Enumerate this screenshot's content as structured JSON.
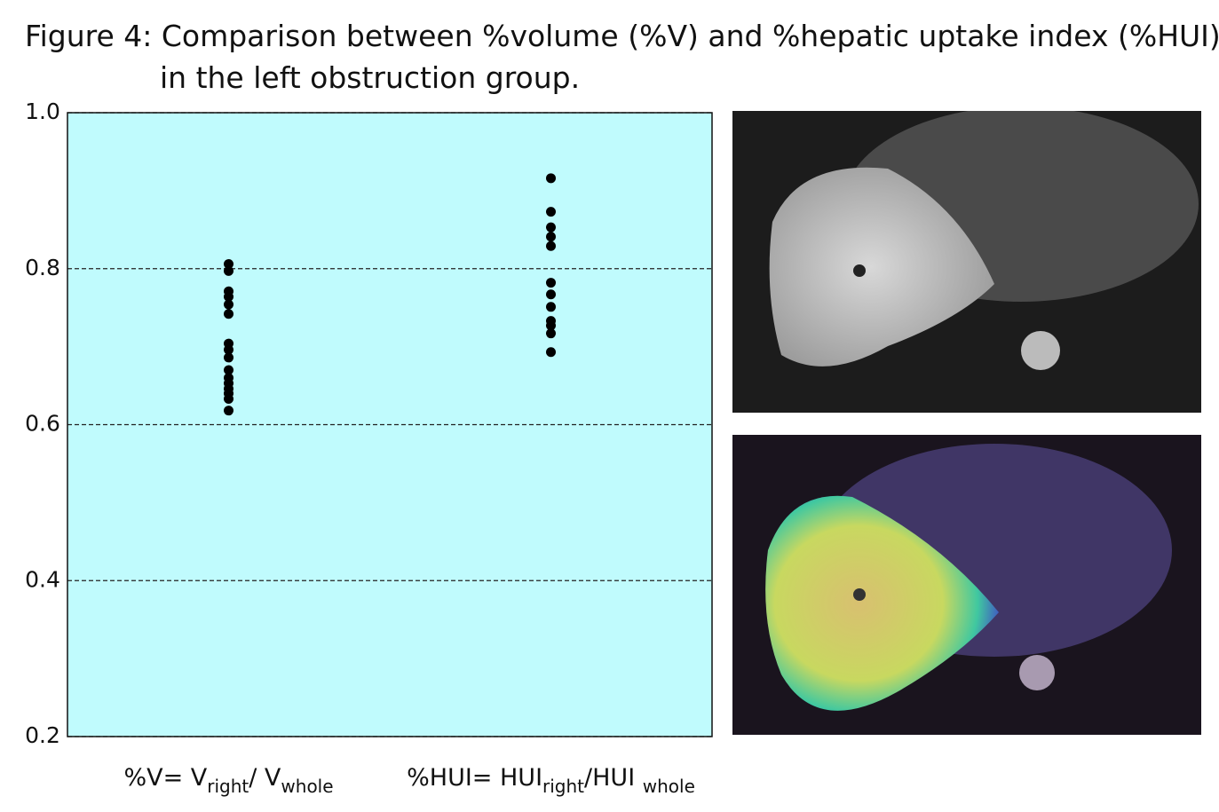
{
  "chart_data": {
    "type": "strip",
    "title": [
      "Figure 4: Comparison between %volume (%V) and %hepatic uptake index (%HUI)",
      "in the left obstruction group."
    ],
    "categories": [
      [
        "%V= V",
        "right",
        "/ V",
        "whole"
      ],
      [
        "%HUI= HUI",
        "right",
        "/HUI ",
        "whole"
      ]
    ],
    "series": [
      {
        "color": "#000000",
        "values": [
          0.806,
          0.797,
          0.771,
          0.764,
          0.754,
          0.742,
          0.704,
          0.696,
          0.686,
          0.67,
          0.66,
          0.653,
          0.646,
          0.64,
          0.633,
          0.618
        ]
      },
      {
        "color": "#000000",
        "values": [
          0.916,
          0.873,
          0.853,
          0.841,
          0.829,
          0.782,
          0.767,
          0.751,
          0.733,
          0.727,
          0.717,
          0.693
        ]
      }
    ],
    "ylim": [
      0.2,
      1.0
    ],
    "yticks": [
      {
        "value": 0.2,
        "label": "0.2"
      },
      {
        "value": 0.4,
        "label": "0.4"
      },
      {
        "value": 0.6,
        "label": "0.6"
      },
      {
        "value": 0.8,
        "label": "0.8"
      },
      {
        "value": 1.0,
        "label": "1.0"
      }
    ],
    "grid": true,
    "background": "#c0fbfd"
  }
}
